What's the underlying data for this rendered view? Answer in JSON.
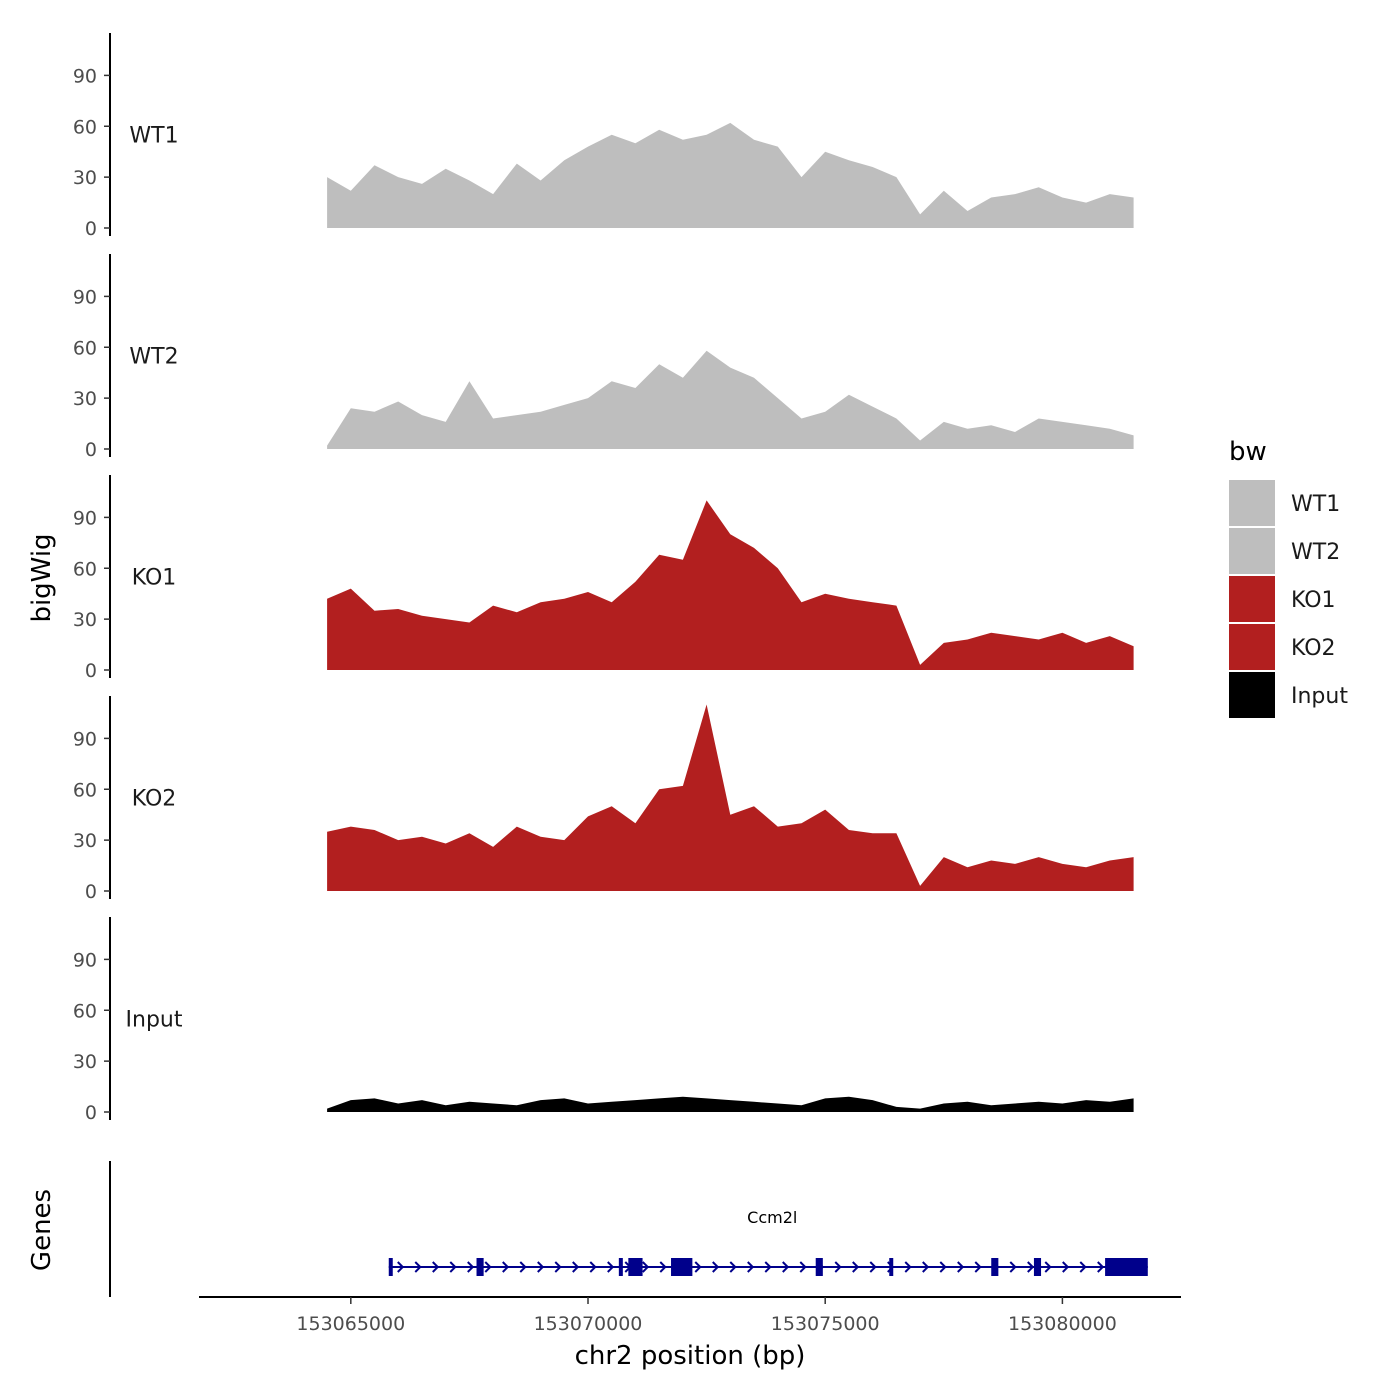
{
  "chart_data": {
    "type": "area",
    "title": "",
    "ylabel": "bigWig",
    "xlabel": "chr2 position (bp)",
    "gene_track_label": "Genes",
    "xlim": [
      153061800,
      153082500
    ],
    "ylim": [
      0,
      115
    ],
    "y_ticks": [
      0,
      30,
      60,
      90
    ],
    "x_ticks": [
      153065000,
      153070000,
      153075000,
      153080000
    ],
    "x_tick_labels": [
      "153065000",
      "153070000",
      "153075000",
      "153080000"
    ],
    "legend": {
      "title": "bw",
      "position": "right",
      "entries": [
        {
          "label": "WT1",
          "color": "#bebebe"
        },
        {
          "label": "WT2",
          "color": "#bebebe"
        },
        {
          "label": "KO1",
          "color": "#b21f1f"
        },
        {
          "label": "KO2",
          "color": "#b21f1f"
        },
        {
          "label": "Input",
          "color": "#000000"
        }
      ]
    },
    "tracks": [
      {
        "name": "WT1",
        "color": "#bebebe",
        "x": [
          153064500,
          153065000,
          153065500,
          153066000,
          153066500,
          153067000,
          153067500,
          153068000,
          153068500,
          153069000,
          153069500,
          153070000,
          153070500,
          153071000,
          153071500,
          153072000,
          153072500,
          153073000,
          153073500,
          153074000,
          153074500,
          153075000,
          153075500,
          153076000,
          153076500,
          153077000,
          153077500,
          153078000,
          153078500,
          153079000,
          153079500,
          153080000,
          153080500,
          153081000,
          153081500
        ],
        "y": [
          30,
          22,
          37,
          30,
          26,
          35,
          28,
          20,
          38,
          28,
          40,
          48,
          55,
          50,
          58,
          52,
          55,
          62,
          52,
          48,
          30,
          45,
          40,
          36,
          30,
          8,
          22,
          10,
          18,
          20,
          24,
          18,
          15,
          20,
          18
        ]
      },
      {
        "name": "WT2",
        "color": "#bebebe",
        "x": [
          153064500,
          153065000,
          153065500,
          153066000,
          153066500,
          153067000,
          153067500,
          153068000,
          153068500,
          153069000,
          153069500,
          153070000,
          153070500,
          153071000,
          153071500,
          153072000,
          153072500,
          153073000,
          153073500,
          153074000,
          153074500,
          153075000,
          153075500,
          153076000,
          153076500,
          153077000,
          153077500,
          153078000,
          153078500,
          153079000,
          153079500,
          153080000,
          153080500,
          153081000,
          153081500
        ],
        "y": [
          2,
          24,
          22,
          28,
          20,
          16,
          40,
          18,
          20,
          22,
          26,
          30,
          40,
          36,
          50,
          42,
          58,
          48,
          42,
          30,
          18,
          22,
          32,
          25,
          18,
          5,
          16,
          12,
          14,
          10,
          18,
          16,
          14,
          12,
          8
        ]
      },
      {
        "name": "KO1",
        "color": "#b21f1f",
        "x": [
          153064500,
          153065000,
          153065500,
          153066000,
          153066500,
          153067000,
          153067500,
          153068000,
          153068500,
          153069000,
          153069500,
          153070000,
          153070500,
          153071000,
          153071500,
          153072000,
          153072500,
          153073000,
          153073500,
          153074000,
          153074500,
          153075000,
          153075500,
          153076000,
          153076500,
          153077000,
          153077500,
          153078000,
          153078500,
          153079000,
          153079500,
          153080000,
          153080500,
          153081000,
          153081500
        ],
        "y": [
          42,
          48,
          35,
          36,
          32,
          30,
          28,
          38,
          34,
          40,
          42,
          46,
          40,
          52,
          68,
          65,
          100,
          80,
          72,
          60,
          40,
          45,
          42,
          40,
          38,
          3,
          16,
          18,
          22,
          20,
          18,
          22,
          16,
          20,
          14
        ]
      },
      {
        "name": "KO2",
        "color": "#b21f1f",
        "x": [
          153064500,
          153065000,
          153065500,
          153066000,
          153066500,
          153067000,
          153067500,
          153068000,
          153068500,
          153069000,
          153069500,
          153070000,
          153070500,
          153071000,
          153071500,
          153072000,
          153072500,
          153073000,
          153073500,
          153074000,
          153074500,
          153075000,
          153075500,
          153076000,
          153076500,
          153077000,
          153077500,
          153078000,
          153078500,
          153079000,
          153079500,
          153080000,
          153080500,
          153081000,
          153081500
        ],
        "y": [
          35,
          38,
          36,
          30,
          32,
          28,
          34,
          26,
          38,
          32,
          30,
          44,
          50,
          40,
          60,
          62,
          110,
          45,
          50,
          38,
          40,
          48,
          36,
          34,
          34,
          3,
          20,
          14,
          18,
          16,
          20,
          16,
          14,
          18,
          20
        ]
      },
      {
        "name": "Input",
        "color": "#000000",
        "x": [
          153064500,
          153065000,
          153065500,
          153066000,
          153066500,
          153067000,
          153067500,
          153068000,
          153068500,
          153069000,
          153069500,
          153070000,
          153070500,
          153071000,
          153071500,
          153072000,
          153072500,
          153073000,
          153073500,
          153074000,
          153074500,
          153075000,
          153075500,
          153076000,
          153076500,
          153077000,
          153077500,
          153078000,
          153078500,
          153079000,
          153079500,
          153080000,
          153080500,
          153081000,
          153081500
        ],
        "y": [
          2,
          7,
          8,
          5,
          7,
          4,
          6,
          5,
          4,
          7,
          8,
          5,
          6,
          7,
          8,
          9,
          8,
          7,
          6,
          5,
          4,
          8,
          9,
          7,
          3,
          2,
          5,
          6,
          4,
          5,
          6,
          5,
          7,
          6,
          8
        ]
      }
    ],
    "gene": {
      "name": "Ccm2l",
      "strand": "+",
      "start": 153065800,
      "end": 153081800,
      "color": "#00008b",
      "exons": [
        [
          153065800,
          153065870
        ],
        [
          153067650,
          153067800
        ],
        [
          153070650,
          153070730
        ],
        [
          153070850,
          153071150
        ],
        [
          153071750,
          153072200
        ],
        [
          153074800,
          153074950
        ],
        [
          153076350,
          153076400
        ],
        [
          153078500,
          153078650
        ],
        [
          153079400,
          153079550
        ],
        [
          153080900,
          153081800
        ]
      ]
    }
  }
}
